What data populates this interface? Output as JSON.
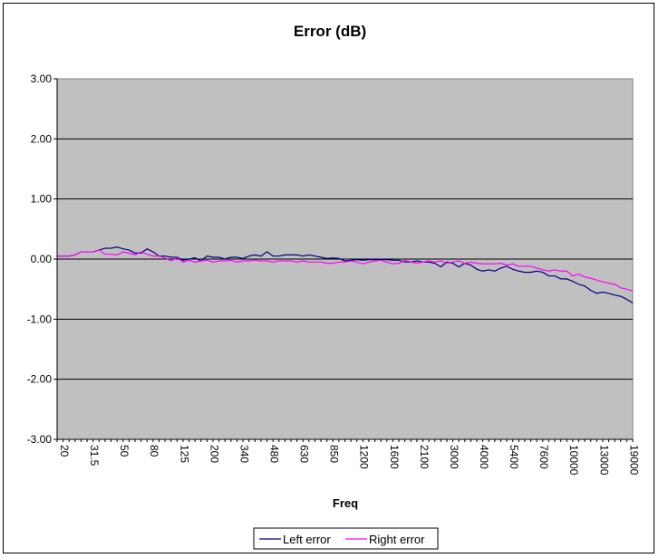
{
  "chart_data": {
    "type": "line",
    "title": "Error (dB)",
    "xlabel": "Freq",
    "ylabel": "",
    "ylim": [
      -3,
      3
    ],
    "yticks": [
      "3.00",
      "2.00",
      "1.00",
      "0.00",
      "-1.00",
      "-2.00",
      "-3.00"
    ],
    "grid": "horizontal",
    "plot_background": "#c0c0c0",
    "legend_position": "bottom",
    "x_tick_labels": [
      "20",
      "31.5",
      "50",
      "80",
      "125",
      "200",
      "340",
      "480",
      "630",
      "850",
      "1200",
      "1600",
      "2100",
      "3000",
      "4000",
      "5400",
      "7600",
      "10000",
      "13000",
      "19000"
    ],
    "x_points": 97,
    "series": [
      {
        "name": "Left error",
        "color": "#000080",
        "values": [
          0.05,
          0.05,
          0.05,
          0.07,
          0.12,
          0.12,
          0.12,
          0.15,
          0.18,
          0.18,
          0.2,
          0.17,
          0.15,
          0.1,
          0.1,
          0.17,
          0.12,
          0.05,
          0.05,
          0.03,
          0.03,
          -0.02,
          0.0,
          0.02,
          -0.03,
          0.05,
          0.03,
          0.03,
          0.0,
          0.03,
          0.03,
          0.01,
          0.05,
          0.07,
          0.05,
          0.12,
          0.05,
          0.05,
          0.07,
          0.07,
          0.07,
          0.05,
          0.07,
          0.05,
          0.03,
          0.01,
          0.02,
          0.01,
          -0.03,
          -0.02,
          -0.01,
          -0.02,
          -0.01,
          -0.01,
          -0.01,
          -0.01,
          -0.02,
          -0.02,
          -0.05,
          -0.05,
          -0.03,
          -0.05,
          -0.05,
          -0.07,
          -0.13,
          -0.05,
          -0.07,
          -0.13,
          -0.07,
          -0.1,
          -0.17,
          -0.2,
          -0.18,
          -0.2,
          -0.15,
          -0.12,
          -0.17,
          -0.2,
          -0.22,
          -0.22,
          -0.2,
          -0.22,
          -0.28,
          -0.28,
          -0.33,
          -0.33,
          -0.37,
          -0.42,
          -0.45,
          -0.52,
          -0.57,
          -0.55,
          -0.57,
          -0.6,
          -0.62,
          -0.67,
          -0.73
        ]
      },
      {
        "name": "Right error",
        "color": "#ff00ff",
        "values": [
          0.05,
          0.05,
          0.05,
          0.07,
          0.12,
          0.12,
          0.12,
          0.15,
          0.08,
          0.08,
          0.07,
          0.12,
          0.1,
          0.07,
          0.12,
          0.08,
          0.05,
          0.05,
          0.02,
          -0.03,
          0.02,
          -0.05,
          -0.02,
          -0.05,
          -0.03,
          -0.02,
          -0.05,
          -0.03,
          -0.03,
          -0.02,
          -0.05,
          -0.03,
          -0.03,
          -0.02,
          -0.03,
          -0.03,
          -0.05,
          -0.03,
          -0.03,
          -0.03,
          -0.05,
          -0.03,
          -0.05,
          -0.05,
          -0.05,
          -0.07,
          -0.07,
          -0.05,
          -0.05,
          -0.03,
          -0.05,
          -0.08,
          -0.05,
          -0.03,
          -0.02,
          -0.05,
          -0.08,
          -0.07,
          -0.02,
          -0.05,
          -0.07,
          -0.05,
          -0.03,
          -0.05,
          -0.03,
          -0.07,
          -0.05,
          -0.03,
          -0.07,
          -0.05,
          -0.07,
          -0.08,
          -0.08,
          -0.08,
          -0.07,
          -0.1,
          -0.08,
          -0.12,
          -0.12,
          -0.12,
          -0.15,
          -0.18,
          -0.2,
          -0.18,
          -0.2,
          -0.2,
          -0.28,
          -0.25,
          -0.3,
          -0.32,
          -0.35,
          -0.38,
          -0.4,
          -0.42,
          -0.48,
          -0.5,
          -0.53
        ]
      }
    ]
  }
}
